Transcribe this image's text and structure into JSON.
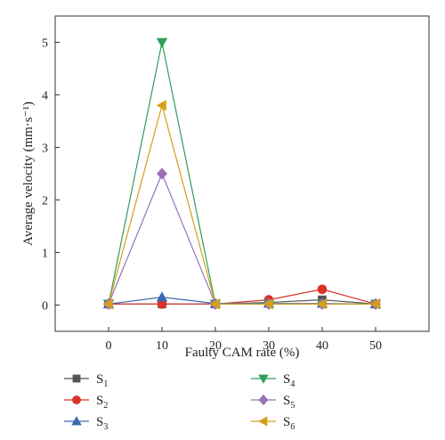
{
  "chart_data": {
    "type": "line",
    "xlabel": "Faulty CAM rate (%)",
    "ylabel": "Average velocity (mm·s⁻¹)",
    "x": [
      0,
      10,
      20,
      30,
      40,
      50
    ],
    "xlim": [
      -10,
      60
    ],
    "ylim": [
      -0.5,
      5.5
    ],
    "xticks": [
      "0",
      "10",
      "20",
      "30",
      "40",
      "50"
    ],
    "yticks": [
      "0",
      "1",
      "2",
      "3",
      "4",
      "5"
    ],
    "grid": false,
    "legend_position": "bottom",
    "series": [
      {
        "name": "S1",
        "base": "S",
        "sub": "1",
        "color": "#555555",
        "marker": "square",
        "values": [
          0.02,
          0.02,
          0.02,
          0.05,
          0.1,
          0.02
        ]
      },
      {
        "name": "S2",
        "base": "S",
        "sub": "2",
        "color": "#d9322b",
        "marker": "circle",
        "values": [
          0.02,
          0.02,
          0.02,
          0.1,
          0.3,
          0.02
        ]
      },
      {
        "name": "S3",
        "base": "S",
        "sub": "3",
        "color": "#3f67b1",
        "marker": "triangle-up",
        "values": [
          0.02,
          0.15,
          0.03,
          0.03,
          0.03,
          0.02
        ]
      },
      {
        "name": "S4",
        "base": "S",
        "sub": "4",
        "color": "#2f9e5a",
        "marker": "triangle-down",
        "values": [
          0.02,
          5.0,
          0.02,
          0.02,
          0.02,
          0.02
        ]
      },
      {
        "name": "S5",
        "base": "S",
        "sub": "5",
        "color": "#9b72b8",
        "marker": "diamond",
        "values": [
          0.02,
          2.5,
          0.02,
          0.02,
          0.02,
          0.02
        ]
      },
      {
        "name": "S6",
        "base": "S",
        "sub": "6",
        "color": "#d4a017",
        "marker": "triangle-left",
        "values": [
          0.02,
          3.8,
          0.02,
          0.02,
          0.02,
          0.02
        ]
      }
    ]
  }
}
